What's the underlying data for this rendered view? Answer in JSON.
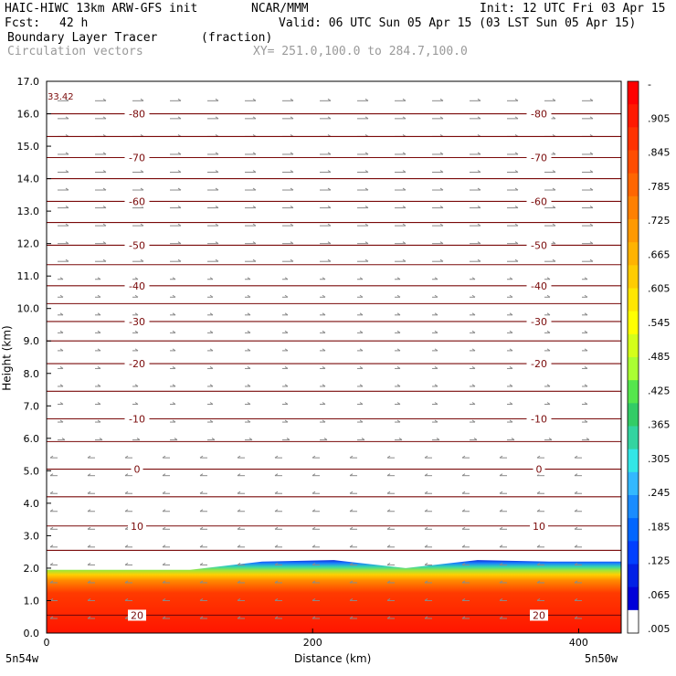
{
  "header": {
    "model": "HAIC-HIWC 13km ARW-GFS init",
    "org": "NCAR/MMM",
    "init": "Init: 12 UTC Fri 03 Apr 15",
    "fcst_label": "Fcst:",
    "fcst_value": "42 h",
    "valid": "Valid: 06 UTC Sun 05 Apr 15 (03 LST Sun 05 Apr 15)",
    "field": "Boundary Layer Tracer",
    "units": "(fraction)",
    "vectors": "Circulation vectors",
    "xy": "XY= 251.0,100.0 to 284.7,100.0"
  },
  "chart_data": {
    "type": "cross-section",
    "xlabel": "Distance (km)",
    "ylabel": "Height (km)",
    "xlim": [
      0,
      432
    ],
    "ylim": [
      0,
      17
    ],
    "x_ticks": [
      "0",
      "200",
      "400"
    ],
    "x_tick_values": [
      0,
      200,
      400
    ],
    "y_ticks": [
      "0.0",
      "1.0",
      "2.0",
      "3.0",
      "4.0",
      "5.0",
      "6.0",
      "7.0",
      "8.0",
      "9.0",
      "10.0",
      "11.0",
      "12.0",
      "13.0",
      "14.0",
      "15.0",
      "16.0",
      "17.0"
    ],
    "corner_left": "5n54w",
    "corner_right": "5n50w",
    "max_label": "33.42",
    "temperature_contours": [
      {
        "label": "-80",
        "height": 16.0
      },
      {
        "label": "-70",
        "height": 14.65
      },
      {
        "label": "-60",
        "height": 13.3
      },
      {
        "label": "-50",
        "height": 11.95
      },
      {
        "label": "-40",
        "height": 10.7
      },
      {
        "label": "-30",
        "height": 9.6
      },
      {
        "label": "-20",
        "height": 8.3
      },
      {
        "label": "-10",
        "height": 6.6
      },
      {
        "label": "0",
        "height": 5.05
      },
      {
        "label": "10",
        "height": 3.3
      },
      {
        "label": "20",
        "height": 0.55
      }
    ],
    "unlabeled_contour_heights": [
      15.3,
      14.0,
      12.65,
      11.35,
      10.15,
      9.0,
      7.45,
      5.9,
      4.2,
      2.55
    ],
    "tracer_top_km": [
      1.95,
      1.95,
      1.95,
      2.2,
      2.25,
      2.0,
      2.25,
      2.2,
      2.2
    ],
    "colorbar": {
      "labels": [
        "-",
        ".905",
        ".845",
        ".785",
        ".725",
        ".665",
        ".605",
        ".545",
        ".485",
        ".425",
        ".365",
        ".305",
        ".245",
        ".185",
        ".125",
        ".065",
        ".005"
      ],
      "colors": [
        "#ff0000",
        "#ff1a00",
        "#ff3300",
        "#ff4d00",
        "#ff6600",
        "#ff8000",
        "#ff9900",
        "#ffb300",
        "#ffcc00",
        "#ffe600",
        "#ffff00",
        "#d4ff1a",
        "#aaff33",
        "#55e64d",
        "#33cc66",
        "#33d4a0",
        "#33e6e6",
        "#33b8ff",
        "#1a8cff",
        "#0066ff",
        "#0040ff",
        "#0020e6",
        "#0000d9",
        "#ffffff"
      ]
    }
  }
}
